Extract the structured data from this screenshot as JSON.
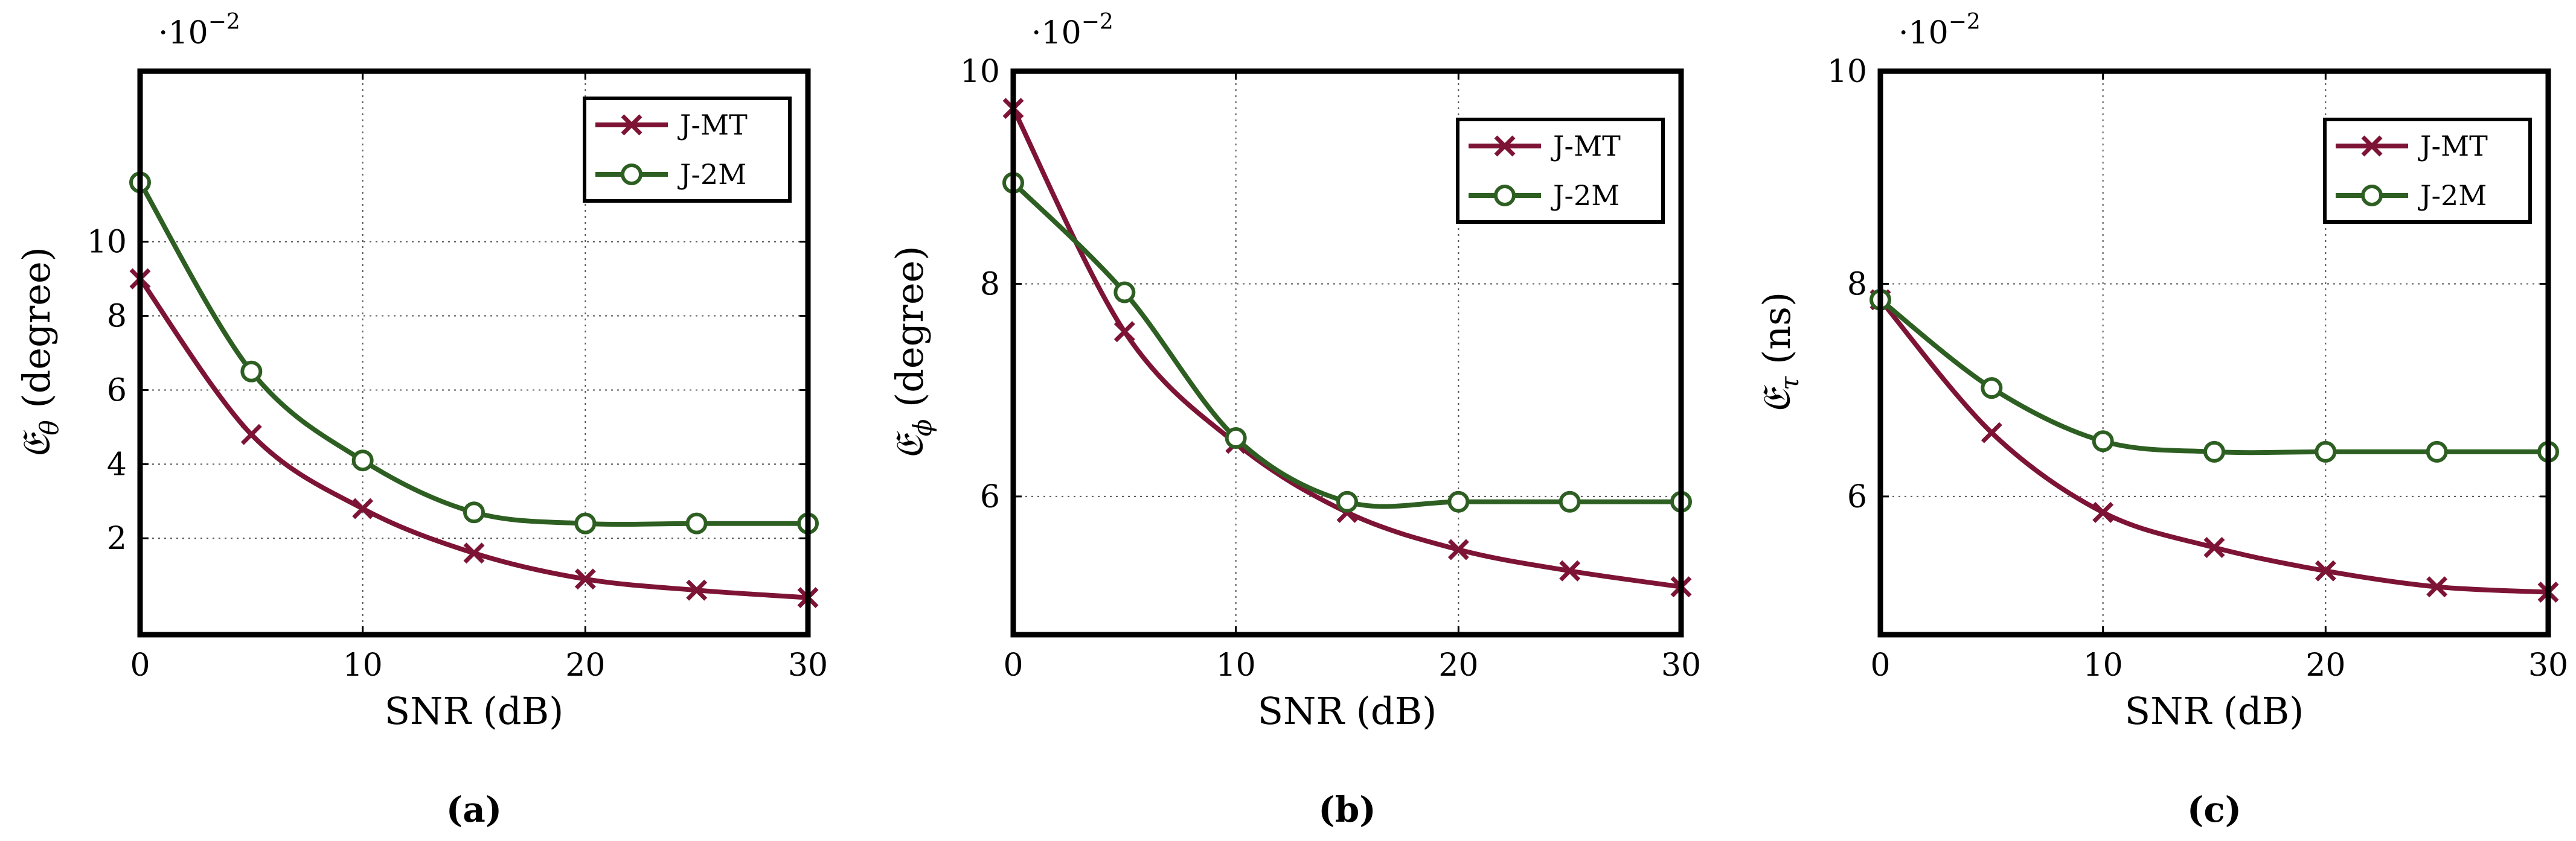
{
  "colors": {
    "jmt": "#7d1436",
    "j2m": "#2e5f22"
  },
  "axis_multiplier": {
    "base": "·10",
    "exponent": "−2"
  },
  "chart_data": [
    {
      "type": "line",
      "caption": "(a)",
      "xlabel": "SNR (dB)",
      "ylabel_symbol": "𝔈",
      "ylabel_sub": "θ",
      "ylabel_unit": " (degree)",
      "xlim": [
        0,
        30
      ],
      "ylim": [
        -0.6,
        14.6
      ],
      "xticks": [
        0,
        10,
        20,
        30
      ],
      "yticks": [
        2,
        4,
        6,
        8,
        10
      ],
      "legend_entries": [
        "J-MT",
        "J-2M"
      ],
      "legend_position": "top-right",
      "x": [
        0,
        5,
        10,
        15,
        20,
        25,
        30
      ],
      "series": [
        {
          "name": "J-MT",
          "marker": "x",
          "values": [
            9.0,
            4.8,
            2.8,
            1.6,
            0.9,
            0.6,
            0.4
          ]
        },
        {
          "name": "J-2M",
          "marker": "o",
          "values": [
            11.6,
            6.5,
            4.1,
            2.7,
            2.4,
            2.4,
            2.4
          ]
        }
      ]
    },
    {
      "type": "line",
      "caption": "(b)",
      "xlabel": "SNR (dB)",
      "ylabel_symbol": "𝔈",
      "ylabel_sub": "ϕ",
      "ylabel_unit": " (degree)",
      "xlim": [
        0,
        30
      ],
      "ylim": [
        4.7,
        10.0
      ],
      "xticks": [
        0,
        10,
        20,
        30
      ],
      "yticks": [
        6,
        8,
        10
      ],
      "legend_entries": [
        "J-MT",
        "J-2M"
      ],
      "legend_position": "top-right",
      "x": [
        0,
        5,
        10,
        15,
        20,
        25,
        30
      ],
      "series": [
        {
          "name": "J-MT",
          "marker": "x",
          "values": [
            9.65,
            7.55,
            6.5,
            5.85,
            5.5,
            5.3,
            5.15
          ]
        },
        {
          "name": "J-2M",
          "marker": "o",
          "values": [
            8.95,
            7.92,
            6.55,
            5.95,
            5.95,
            5.95,
            5.95
          ]
        }
      ]
    },
    {
      "type": "line",
      "caption": "(c)",
      "xlabel": "SNR (dB)",
      "ylabel_symbol": "𝔈",
      "ylabel_sub": "τ",
      "ylabel_unit": " (ns)",
      "xlim": [
        0,
        30
      ],
      "ylim": [
        4.7,
        10.0
      ],
      "xticks": [
        0,
        10,
        20,
        30
      ],
      "yticks": [
        6,
        8,
        10
      ],
      "legend_entries": [
        "J-MT",
        "J-2M"
      ],
      "legend_position": "top-right",
      "x": [
        0,
        5,
        10,
        15,
        20,
        25,
        30
      ],
      "series": [
        {
          "name": "J-MT",
          "marker": "x",
          "values": [
            7.85,
            6.6,
            5.85,
            5.52,
            5.3,
            5.15,
            5.1
          ]
        },
        {
          "name": "J-2M",
          "marker": "o",
          "values": [
            7.85,
            7.02,
            6.52,
            6.42,
            6.42,
            6.42,
            6.42
          ]
        }
      ]
    }
  ]
}
